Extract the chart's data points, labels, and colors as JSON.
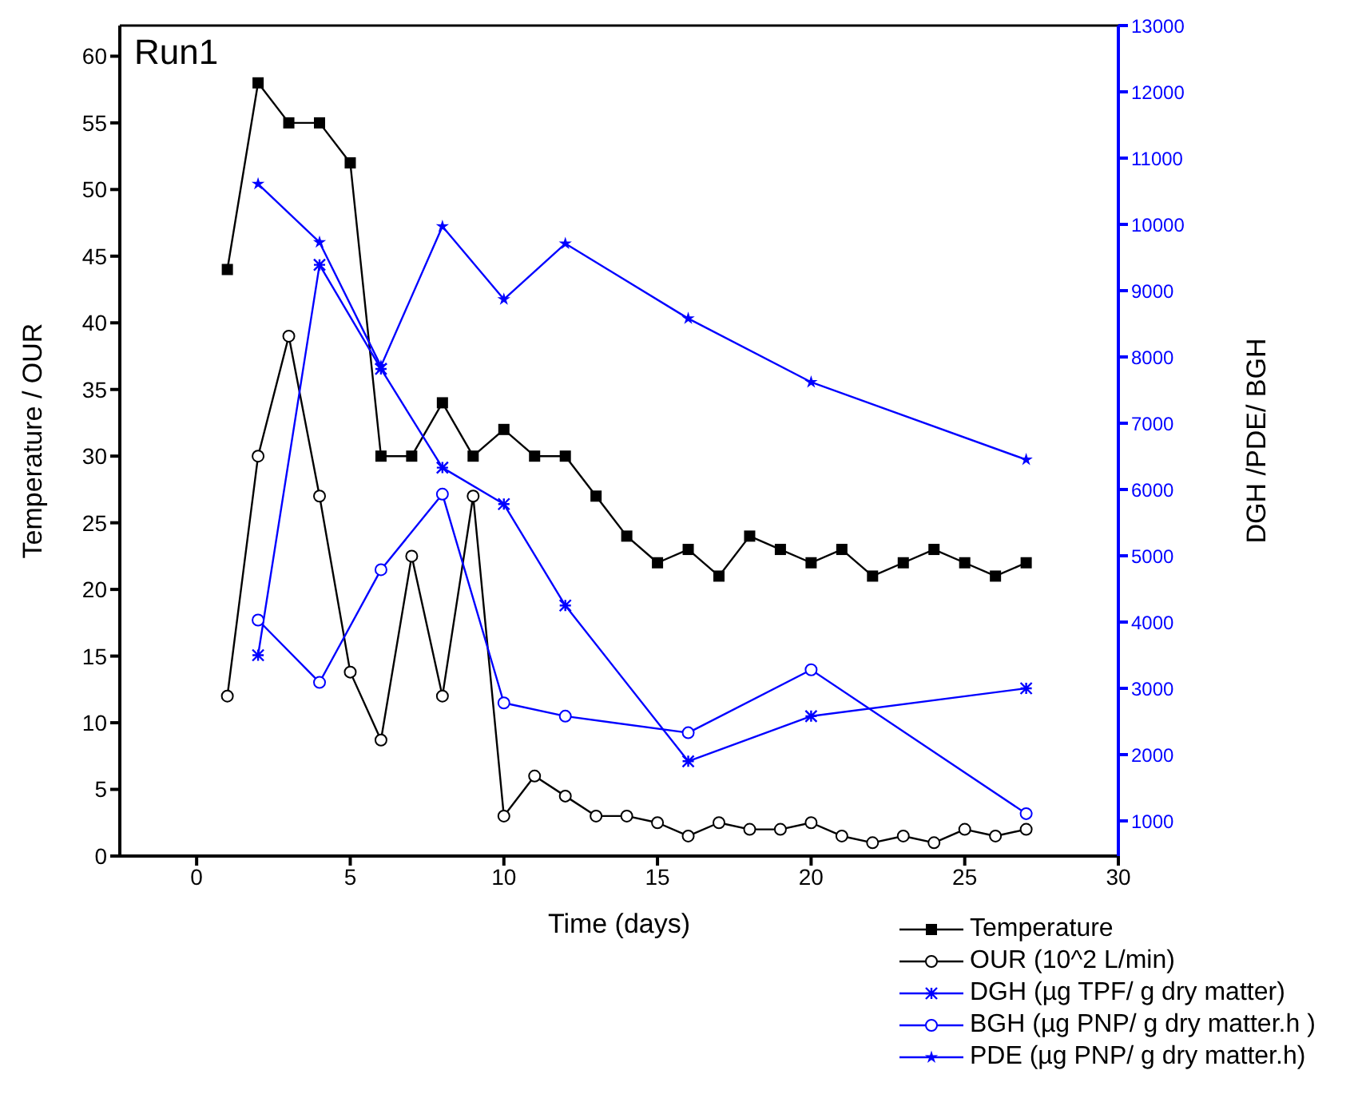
{
  "chart_data": {
    "type": "line",
    "title": "Run1",
    "xlabel": "Time (days)",
    "ylabel": "Temperature / OUR",
    "y2label": "DGH /PDE/ BGH",
    "xlim": [
      -2.5,
      30
    ],
    "xticks": [
      0,
      5,
      10,
      15,
      20,
      25,
      30
    ],
    "ylim": [
      0,
      62.3
    ],
    "yticks": [
      0,
      5,
      10,
      15,
      20,
      25,
      30,
      35,
      40,
      45,
      50,
      55,
      60
    ],
    "y2lim": [
      470,
      13000
    ],
    "y2ticks": [
      1000,
      2000,
      3000,
      4000,
      5000,
      6000,
      7000,
      8000,
      9000,
      10000,
      11000,
      12000,
      13000
    ],
    "legend": "bottom right",
    "line_style": "solid",
    "series": [
      {
        "name": "Temperature",
        "color": "#000000",
        "marker": "square",
        "x": [
          1,
          2,
          3,
          4,
          5,
          6,
          7,
          8,
          9,
          10,
          11,
          12,
          13,
          14,
          15,
          16,
          17,
          18,
          19,
          20,
          21,
          22,
          23,
          24,
          25,
          26,
          27
        ],
        "values": [
          44,
          58,
          55,
          55,
          52,
          30,
          30,
          34,
          30,
          32,
          30,
          30,
          27,
          24,
          22,
          23,
          21,
          24,
          23,
          22,
          23,
          21,
          22,
          23,
          22,
          21,
          22
        ]
      },
      {
        "name": "OUR (10^2 L/min)",
        "color": "#000000",
        "marker": "circle",
        "x": [
          1,
          2,
          3,
          4,
          5,
          6,
          7,
          8,
          9,
          10,
          11,
          12,
          13,
          14,
          15,
          16,
          17,
          18,
          19,
          20,
          21,
          22,
          23,
          24,
          25,
          26,
          27
        ],
        "values": [
          12,
          30,
          39,
          27,
          13.8,
          8.7,
          22.5,
          12,
          27,
          3,
          6,
          4.5,
          3,
          3,
          2.5,
          1.5,
          2.5,
          2,
          2,
          2.5,
          1.5,
          1,
          1.5,
          1,
          2,
          1.5,
          2
        ]
      },
      {
        "name": "DGH (µg TPF/ g dry matter)",
        "color": "#0000ff",
        "marker": "cross",
        "axis": "y2",
        "x": [
          2,
          4,
          6,
          8,
          10,
          12,
          16,
          20,
          27
        ],
        "values": [
          3500,
          9390,
          7820,
          6330,
          5780,
          4250,
          1900,
          2580,
          3000
        ]
      },
      {
        "name": "BGH  (µg PNP/ g dry matter.h )",
        "color": "#0000ff",
        "marker": "circle",
        "axis": "y2",
        "x": [
          2,
          4,
          6,
          8,
          10,
          12,
          16,
          20,
          27
        ],
        "values": [
          4030,
          3090,
          4790,
          5930,
          2780,
          2580,
          2330,
          3280,
          1110
        ]
      },
      {
        "name": "PDE  (µg PNP/ g dry matter.h)",
        "color": "#0000ff",
        "marker": "star",
        "axis": "y2",
        "x": [
          2,
          4,
          6,
          8,
          10,
          12,
          16,
          20,
          27
        ],
        "values": [
          10610,
          9730,
          7860,
          9970,
          8870,
          9710,
          8580,
          7620,
          6450
        ]
      }
    ]
  }
}
